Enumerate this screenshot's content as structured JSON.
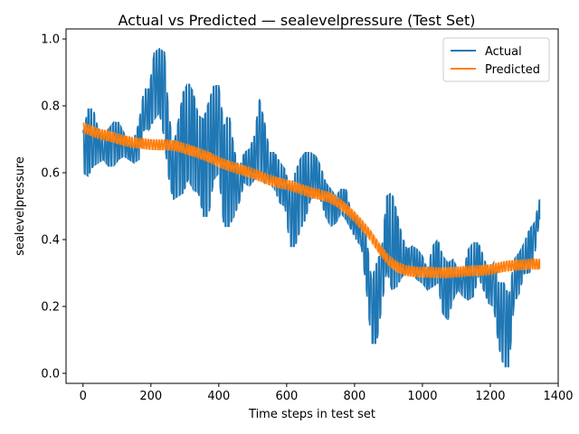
{
  "chart_data": {
    "type": "line",
    "title": "Actual vs Predicted — sealevelpressure (Test Set)",
    "xlabel": "Time steps in test set",
    "ylabel": "sealevelpressure",
    "xlim": [
      -50,
      1400
    ],
    "ylim": [
      -0.03,
      1.03
    ],
    "xticks": [
      0,
      200,
      400,
      600,
      800,
      1000,
      1200,
      1400
    ],
    "yticks": [
      0.0,
      0.2,
      0.4,
      0.6,
      0.8,
      1.0
    ],
    "ytick_labels": [
      "0.0",
      "0.2",
      "0.4",
      "0.6",
      "0.8",
      "1.0"
    ],
    "grid": false,
    "legend": "top-right",
    "series": [
      {
        "name": "Actual",
        "color": "#1f77b4",
        "band": [
          [
            0,
            0.6,
            0.72
          ],
          [
            15,
            0.59,
            0.79
          ],
          [
            30,
            0.62,
            0.79
          ],
          [
            45,
            0.63,
            0.73
          ],
          [
            60,
            0.64,
            0.71
          ],
          [
            75,
            0.62,
            0.73
          ],
          [
            90,
            0.62,
            0.75
          ],
          [
            105,
            0.64,
            0.75
          ],
          [
            120,
            0.65,
            0.72
          ],
          [
            135,
            0.64,
            0.68
          ],
          [
            150,
            0.63,
            0.7
          ],
          [
            165,
            0.64,
            0.75
          ],
          [
            180,
            0.73,
            0.85
          ],
          [
            195,
            0.73,
            0.85
          ],
          [
            210,
            0.76,
            0.96
          ],
          [
            225,
            0.78,
            0.97
          ],
          [
            240,
            0.7,
            0.96
          ],
          [
            250,
            0.6,
            0.81
          ],
          [
            265,
            0.52,
            0.67
          ],
          [
            280,
            0.53,
            0.75
          ],
          [
            295,
            0.54,
            0.84
          ],
          [
            310,
            0.58,
            0.87
          ],
          [
            325,
            0.55,
            0.84
          ],
          [
            340,
            0.54,
            0.77
          ],
          [
            355,
            0.47,
            0.76
          ],
          [
            370,
            0.47,
            0.81
          ],
          [
            385,
            0.58,
            0.86
          ],
          [
            400,
            0.6,
            0.86
          ],
          [
            415,
            0.44,
            0.74
          ],
          [
            430,
            0.44,
            0.78
          ],
          [
            445,
            0.47,
            0.67
          ],
          [
            460,
            0.51,
            0.61
          ],
          [
            475,
            0.57,
            0.66
          ],
          [
            490,
            0.56,
            0.67
          ],
          [
            505,
            0.58,
            0.71
          ],
          [
            520,
            0.59,
            0.82
          ],
          [
            535,
            0.57,
            0.75
          ],
          [
            550,
            0.57,
            0.66
          ],
          [
            565,
            0.55,
            0.66
          ],
          [
            580,
            0.51,
            0.63
          ],
          [
            595,
            0.5,
            0.61
          ],
          [
            610,
            0.38,
            0.55
          ],
          [
            625,
            0.38,
            0.6
          ],
          [
            640,
            0.43,
            0.64
          ],
          [
            655,
            0.46,
            0.66
          ],
          [
            670,
            0.52,
            0.66
          ],
          [
            685,
            0.53,
            0.65
          ],
          [
            700,
            0.52,
            0.62
          ],
          [
            715,
            0.47,
            0.57
          ],
          [
            730,
            0.44,
            0.55
          ],
          [
            745,
            0.45,
            0.53
          ],
          [
            760,
            0.48,
            0.55
          ],
          [
            775,
            0.46,
            0.55
          ],
          [
            790,
            0.43,
            0.48
          ],
          [
            805,
            0.4,
            0.47
          ],
          [
            820,
            0.38,
            0.45
          ],
          [
            835,
            0.25,
            0.41
          ],
          [
            850,
            0.09,
            0.28
          ],
          [
            865,
            0.09,
            0.33
          ],
          [
            880,
            0.2,
            0.37
          ],
          [
            895,
            0.31,
            0.53
          ],
          [
            910,
            0.25,
            0.54
          ],
          [
            925,
            0.26,
            0.48
          ],
          [
            940,
            0.29,
            0.41
          ],
          [
            955,
            0.3,
            0.37
          ],
          [
            970,
            0.3,
            0.38
          ],
          [
            985,
            0.28,
            0.37
          ],
          [
            1000,
            0.27,
            0.35
          ],
          [
            1015,
            0.25,
            0.31
          ],
          [
            1030,
            0.26,
            0.38
          ],
          [
            1045,
            0.27,
            0.4
          ],
          [
            1060,
            0.18,
            0.35
          ],
          [
            1075,
            0.16,
            0.33
          ],
          [
            1090,
            0.22,
            0.34
          ],
          [
            1105,
            0.25,
            0.31
          ],
          [
            1120,
            0.23,
            0.3
          ],
          [
            1135,
            0.22,
            0.37
          ],
          [
            1150,
            0.23,
            0.39
          ],
          [
            1165,
            0.29,
            0.39
          ],
          [
            1180,
            0.25,
            0.35
          ],
          [
            1195,
            0.21,
            0.3
          ],
          [
            1210,
            0.2,
            0.33
          ],
          [
            1225,
            0.08,
            0.27
          ],
          [
            1240,
            0.02,
            0.27
          ],
          [
            1255,
            0.02,
            0.23
          ],
          [
            1270,
            0.21,
            0.34
          ],
          [
            1285,
            0.24,
            0.36
          ],
          [
            1300,
            0.3,
            0.39
          ],
          [
            1315,
            0.3,
            0.43
          ],
          [
            1330,
            0.35,
            0.45
          ],
          [
            1345,
            0.46,
            0.52
          ]
        ]
      },
      {
        "name": "Predicted",
        "color": "#ff7f0e",
        "x": [
          0,
          25,
          50,
          75,
          100,
          125,
          150,
          175,
          200,
          225,
          250,
          275,
          300,
          325,
          350,
          375,
          400,
          425,
          450,
          475,
          500,
          525,
          550,
          575,
          600,
          625,
          650,
          675,
          700,
          725,
          750,
          775,
          800,
          825,
          850,
          875,
          900,
          925,
          950,
          975,
          1000,
          1025,
          1050,
          1075,
          1100,
          1125,
          1150,
          1175,
          1200,
          1225,
          1250,
          1275,
          1300,
          1325,
          1345
        ],
        "y": [
          0.735,
          0.725,
          0.715,
          0.71,
          0.702,
          0.695,
          0.69,
          0.687,
          0.684,
          0.683,
          0.683,
          0.68,
          0.672,
          0.664,
          0.655,
          0.645,
          0.632,
          0.622,
          0.614,
          0.606,
          0.598,
          0.588,
          0.578,
          0.57,
          0.564,
          0.557,
          0.548,
          0.54,
          0.534,
          0.526,
          0.512,
          0.492,
          0.468,
          0.44,
          0.408,
          0.37,
          0.338,
          0.318,
          0.308,
          0.304,
          0.302,
          0.302,
          0.301,
          0.301,
          0.303,
          0.305,
          0.307,
          0.308,
          0.31,
          0.316,
          0.321,
          0.323,
          0.325,
          0.327,
          0.326
        ],
        "spread": 0.014
      }
    ]
  }
}
